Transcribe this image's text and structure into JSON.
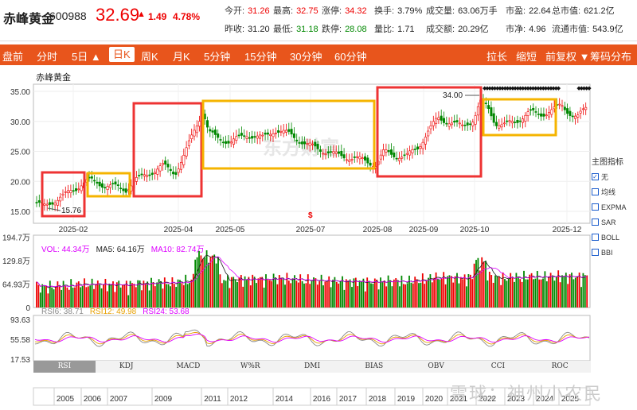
{
  "stock": {
    "name": "赤峰黄金",
    "code": "600988",
    "price": "32.69",
    "arrow": "▲",
    "change": "1.49",
    "pct": "4.78%"
  },
  "quotes": [
    {
      "label": "今开:",
      "value": "31.26",
      "c": "red"
    },
    {
      "label": "最高:",
      "value": "32.75",
      "c": "red"
    },
    {
      "label": "涨停:",
      "value": "34.32",
      "c": "red"
    },
    {
      "label": "换手:",
      "value": "3.79%",
      "c": "blk"
    },
    {
      "label": "成交量:",
      "value": "63.06万手",
      "c": "blk"
    },
    {
      "label": "市盈:",
      "value": "22.64",
      "c": "blk"
    },
    {
      "label": "总市值:",
      "value": "621.2亿",
      "c": "blk"
    },
    {
      "label": "昨收:",
      "value": "31.20",
      "c": "blk"
    },
    {
      "label": "最低:",
      "value": "31.18",
      "c": "grn"
    },
    {
      "label": "跌停:",
      "value": "28.08",
      "c": "grn"
    },
    {
      "label": "量比:",
      "value": "1.71",
      "c": "blk"
    },
    {
      "label": "成交额:",
      "value": "20.29亿",
      "c": "blk"
    },
    {
      "label": "市净:",
      "value": "4.96",
      "c": "blk"
    },
    {
      "label": "流通市值:",
      "value": "543.9亿",
      "c": "blk"
    }
  ],
  "toolbar": {
    "left": [
      "盘前",
      "分时",
      "5日 ▲",
      "日K",
      "周K",
      "月K",
      "5分钟",
      "15分钟",
      "30分钟",
      "60分钟"
    ],
    "right": [
      "拉长",
      "缩短",
      "前复权 ▼",
      "筹码分布"
    ],
    "selected": "日K"
  },
  "chart": {
    "title": "赤峰黄金",
    "yticks": [
      "35.00",
      "30.00",
      "25.00",
      "20.00",
      "15.00"
    ],
    "xticks": [
      "2025-02",
      "2025-04",
      "2025-05",
      "2025-07",
      "2025-08",
      "2025-09",
      "2025-10",
      "2025-12"
    ],
    "low_label": "15.76",
    "high_label": "34.00",
    "watermark": "东方财富",
    "event_marker": "$"
  },
  "indicators": {
    "title": "主图指标",
    "items": [
      "无",
      "均线",
      "EXPMA",
      "SAR",
      "BOLL",
      "BBI"
    ],
    "checked": "无"
  },
  "volume": {
    "legend": [
      {
        "t": "VOL: 44.34万",
        "c": "#d0f"
      },
      {
        "t": "MA5: 64.16万",
        "c": "#222"
      },
      {
        "t": "MA10: 82.74万",
        "c": "#d0f"
      }
    ],
    "yticks": [
      "194.7万",
      "129.8万",
      "64.93万",
      "0"
    ]
  },
  "rsi": {
    "legend": [
      {
        "t": "RSI6: 38.71",
        "c": "#888"
      },
      {
        "t": "RSI12: 49.98",
        "c": "#e8a000"
      },
      {
        "t": "RSI24: 53.68",
        "c": "#d0f"
      }
    ],
    "yticks": [
      "93.63",
      "55.58",
      "17.53"
    ]
  },
  "tabs": [
    "RSI",
    "KDJ",
    "MACD",
    "W%R",
    "DMI",
    "BIAS",
    "OBV",
    "CCI",
    "ROC"
  ],
  "active_tab": "RSI",
  "years": [
    "2005",
    "2006",
    "2007",
    "2009",
    "2011",
    "2012",
    "2014",
    "2016",
    "2017",
    "2018",
    "2019",
    "2020",
    "2021",
    "2022",
    "2023",
    "2024",
    "2025"
  ],
  "watermark2": "雪球：神州小农民",
  "colors": {
    "accent": "#e8551c",
    "up": "#e00",
    "down": "#080"
  }
}
